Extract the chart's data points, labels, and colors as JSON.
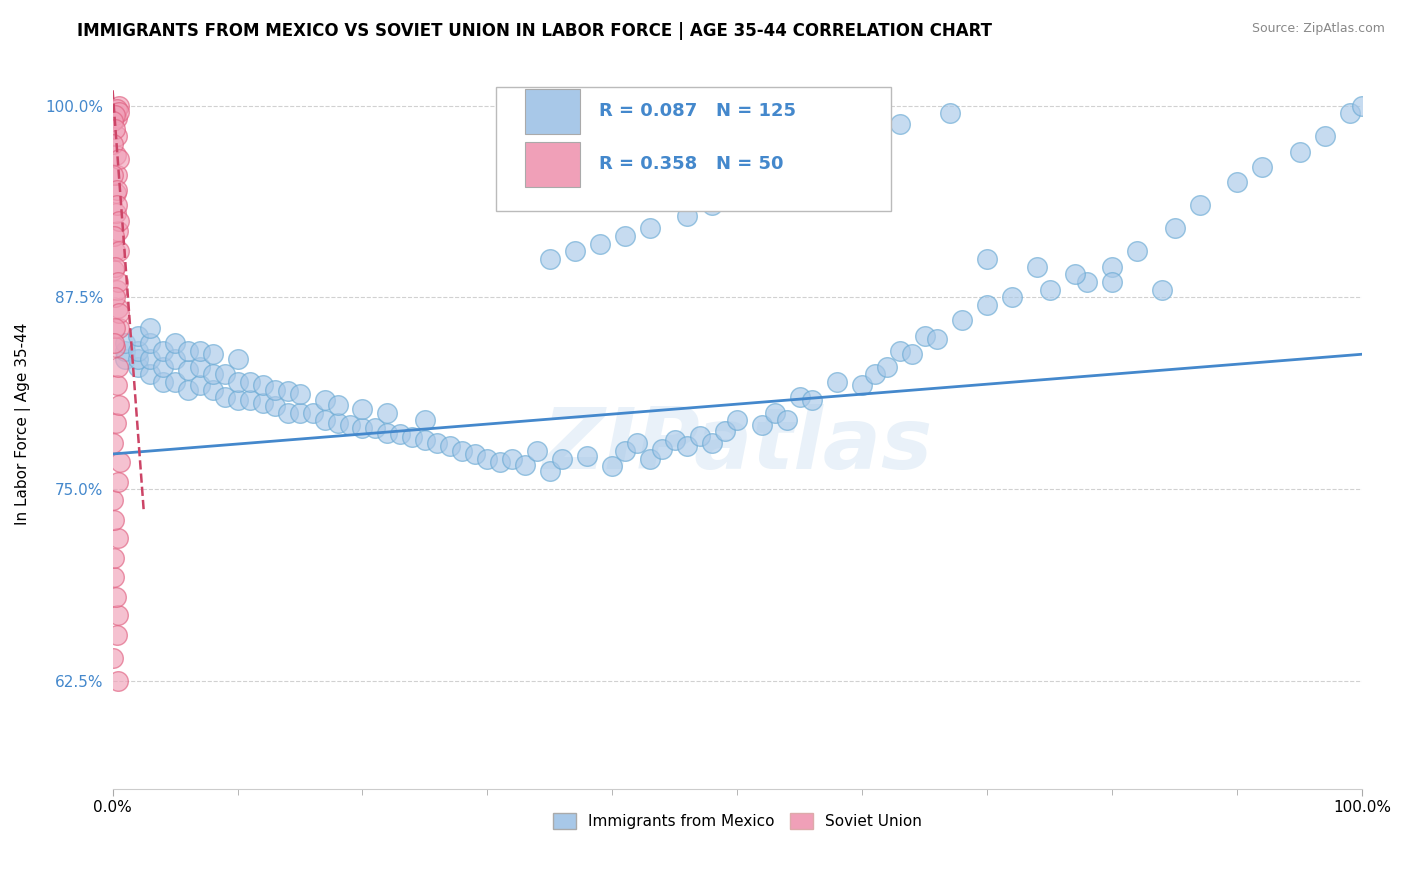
{
  "title": "IMMIGRANTS FROM MEXICO VS SOVIET UNION IN LABOR FORCE | AGE 35-44 CORRELATION CHART",
  "source": "Source: ZipAtlas.com",
  "ylabel": "In Labor Force | Age 35-44",
  "xlim": [
    0.0,
    1.0
  ],
  "ylim": [
    0.555,
    1.03
  ],
  "x_tick_labels": [
    "0.0%",
    "100.0%"
  ],
  "y_ticks": [
    0.625,
    0.75,
    0.875,
    1.0
  ],
  "y_tick_labels": [
    "62.5%",
    "75.0%",
    "87.5%",
    "100.0%"
  ],
  "legend_blue_label": "Immigrants from Mexico",
  "legend_pink_label": "Soviet Union",
  "blue_R": "0.087",
  "blue_N": "125",
  "pink_R": "0.358",
  "pink_N": "50",
  "blue_color": "#a8c8e8",
  "blue_edge_color": "#6aaad4",
  "blue_line_color": "#4488cc",
  "pink_color": "#f0a0b8",
  "pink_edge_color": "#e06080",
  "pink_line_color": "#cc4466",
  "watermark": "ZIPatlas",
  "background_color": "#ffffff",
  "grid_color": "#cccccc",
  "blue_line_x0": 0.0,
  "blue_line_x1": 1.0,
  "blue_line_y0": 0.773,
  "blue_line_y1": 0.838,
  "pink_line_x0": 0.0,
  "pink_line_x1": 0.025,
  "pink_line_y0": 1.01,
  "pink_line_y1": 0.735,
  "blue_scatter_x": [
    0.01,
    0.01,
    0.01,
    0.02,
    0.02,
    0.02,
    0.02,
    0.03,
    0.03,
    0.03,
    0.03,
    0.04,
    0.04,
    0.04,
    0.05,
    0.05,
    0.05,
    0.06,
    0.06,
    0.06,
    0.07,
    0.07,
    0.07,
    0.08,
    0.08,
    0.08,
    0.09,
    0.09,
    0.1,
    0.1,
    0.1,
    0.11,
    0.11,
    0.12,
    0.12,
    0.13,
    0.13,
    0.14,
    0.14,
    0.15,
    0.15,
    0.16,
    0.17,
    0.17,
    0.18,
    0.18,
    0.19,
    0.2,
    0.2,
    0.21,
    0.22,
    0.22,
    0.23,
    0.24,
    0.25,
    0.25,
    0.26,
    0.27,
    0.28,
    0.29,
    0.3,
    0.31,
    0.32,
    0.33,
    0.34,
    0.35,
    0.36,
    0.38,
    0.4,
    0.41,
    0.42,
    0.43,
    0.44,
    0.45,
    0.46,
    0.47,
    0.48,
    0.49,
    0.5,
    0.52,
    0.53,
    0.54,
    0.55,
    0.56,
    0.58,
    0.6,
    0.61,
    0.62,
    0.63,
    0.64,
    0.65,
    0.66,
    0.68,
    0.7,
    0.72,
    0.75,
    0.78,
    0.8,
    0.82,
    0.85,
    0.87,
    0.9,
    0.92,
    0.95,
    0.97,
    0.99,
    1.0,
    0.35,
    0.37,
    0.39,
    0.41,
    0.43,
    0.46,
    0.48,
    0.51,
    0.54,
    0.57,
    0.6,
    0.63,
    0.67,
    0.7,
    0.74,
    0.77,
    0.8,
    0.84
  ],
  "blue_scatter_y": [
    0.835,
    0.84,
    0.845,
    0.83,
    0.835,
    0.84,
    0.85,
    0.825,
    0.835,
    0.845,
    0.855,
    0.82,
    0.83,
    0.84,
    0.82,
    0.835,
    0.845,
    0.815,
    0.828,
    0.84,
    0.818,
    0.83,
    0.84,
    0.815,
    0.825,
    0.838,
    0.81,
    0.825,
    0.808,
    0.82,
    0.835,
    0.808,
    0.82,
    0.806,
    0.818,
    0.804,
    0.815,
    0.8,
    0.814,
    0.8,
    0.812,
    0.8,
    0.795,
    0.808,
    0.793,
    0.805,
    0.792,
    0.79,
    0.802,
    0.79,
    0.787,
    0.8,
    0.786,
    0.784,
    0.782,
    0.795,
    0.78,
    0.778,
    0.775,
    0.773,
    0.77,
    0.768,
    0.77,
    0.766,
    0.775,
    0.762,
    0.77,
    0.772,
    0.765,
    0.775,
    0.78,
    0.77,
    0.776,
    0.782,
    0.778,
    0.785,
    0.78,
    0.788,
    0.795,
    0.792,
    0.8,
    0.795,
    0.81,
    0.808,
    0.82,
    0.818,
    0.825,
    0.83,
    0.84,
    0.838,
    0.85,
    0.848,
    0.86,
    0.87,
    0.875,
    0.88,
    0.885,
    0.895,
    0.905,
    0.92,
    0.935,
    0.95,
    0.96,
    0.97,
    0.98,
    0.995,
    1.0,
    0.9,
    0.905,
    0.91,
    0.915,
    0.92,
    0.928,
    0.935,
    0.945,
    0.955,
    0.965,
    0.975,
    0.988,
    0.995,
    0.9,
    0.895,
    0.89,
    0.885,
    0.88
  ],
  "pink_scatter_x": [
    0.003,
    0.003,
    0.003,
    0.003,
    0.003,
    0.003,
    0.003,
    0.003,
    0.003,
    0.003,
    0.003,
    0.003,
    0.003,
    0.003,
    0.003,
    0.003,
    0.003,
    0.003,
    0.003,
    0.003,
    0.003,
    0.003,
    0.003,
    0.003,
    0.003,
    0.003,
    0.003,
    0.003,
    0.003,
    0.003,
    0.003,
    0.003,
    0.003,
    0.003,
    0.003,
    0.003,
    0.003,
    0.003,
    0.003,
    0.003,
    0.003,
    0.003,
    0.003,
    0.003,
    0.003,
    0.003,
    0.003,
    0.003,
    0.003,
    0.003
  ],
  "pink_scatter_y": [
    0.625,
    0.64,
    0.655,
    0.668,
    0.68,
    0.693,
    0.705,
    0.718,
    0.73,
    0.743,
    0.755,
    0.768,
    0.78,
    0.793,
    0.805,
    0.818,
    0.83,
    0.843,
    0.855,
    0.868,
    0.88,
    0.893,
    0.905,
    0.918,
    0.93,
    0.943,
    0.955,
    0.968,
    0.98,
    0.992,
    1.0,
    0.998,
    0.996,
    0.994,
    0.99,
    0.985,
    0.975,
    0.965,
    0.955,
    0.945,
    0.935,
    0.925,
    0.915,
    0.905,
    0.895,
    0.885,
    0.875,
    0.865,
    0.855,
    0.845
  ]
}
